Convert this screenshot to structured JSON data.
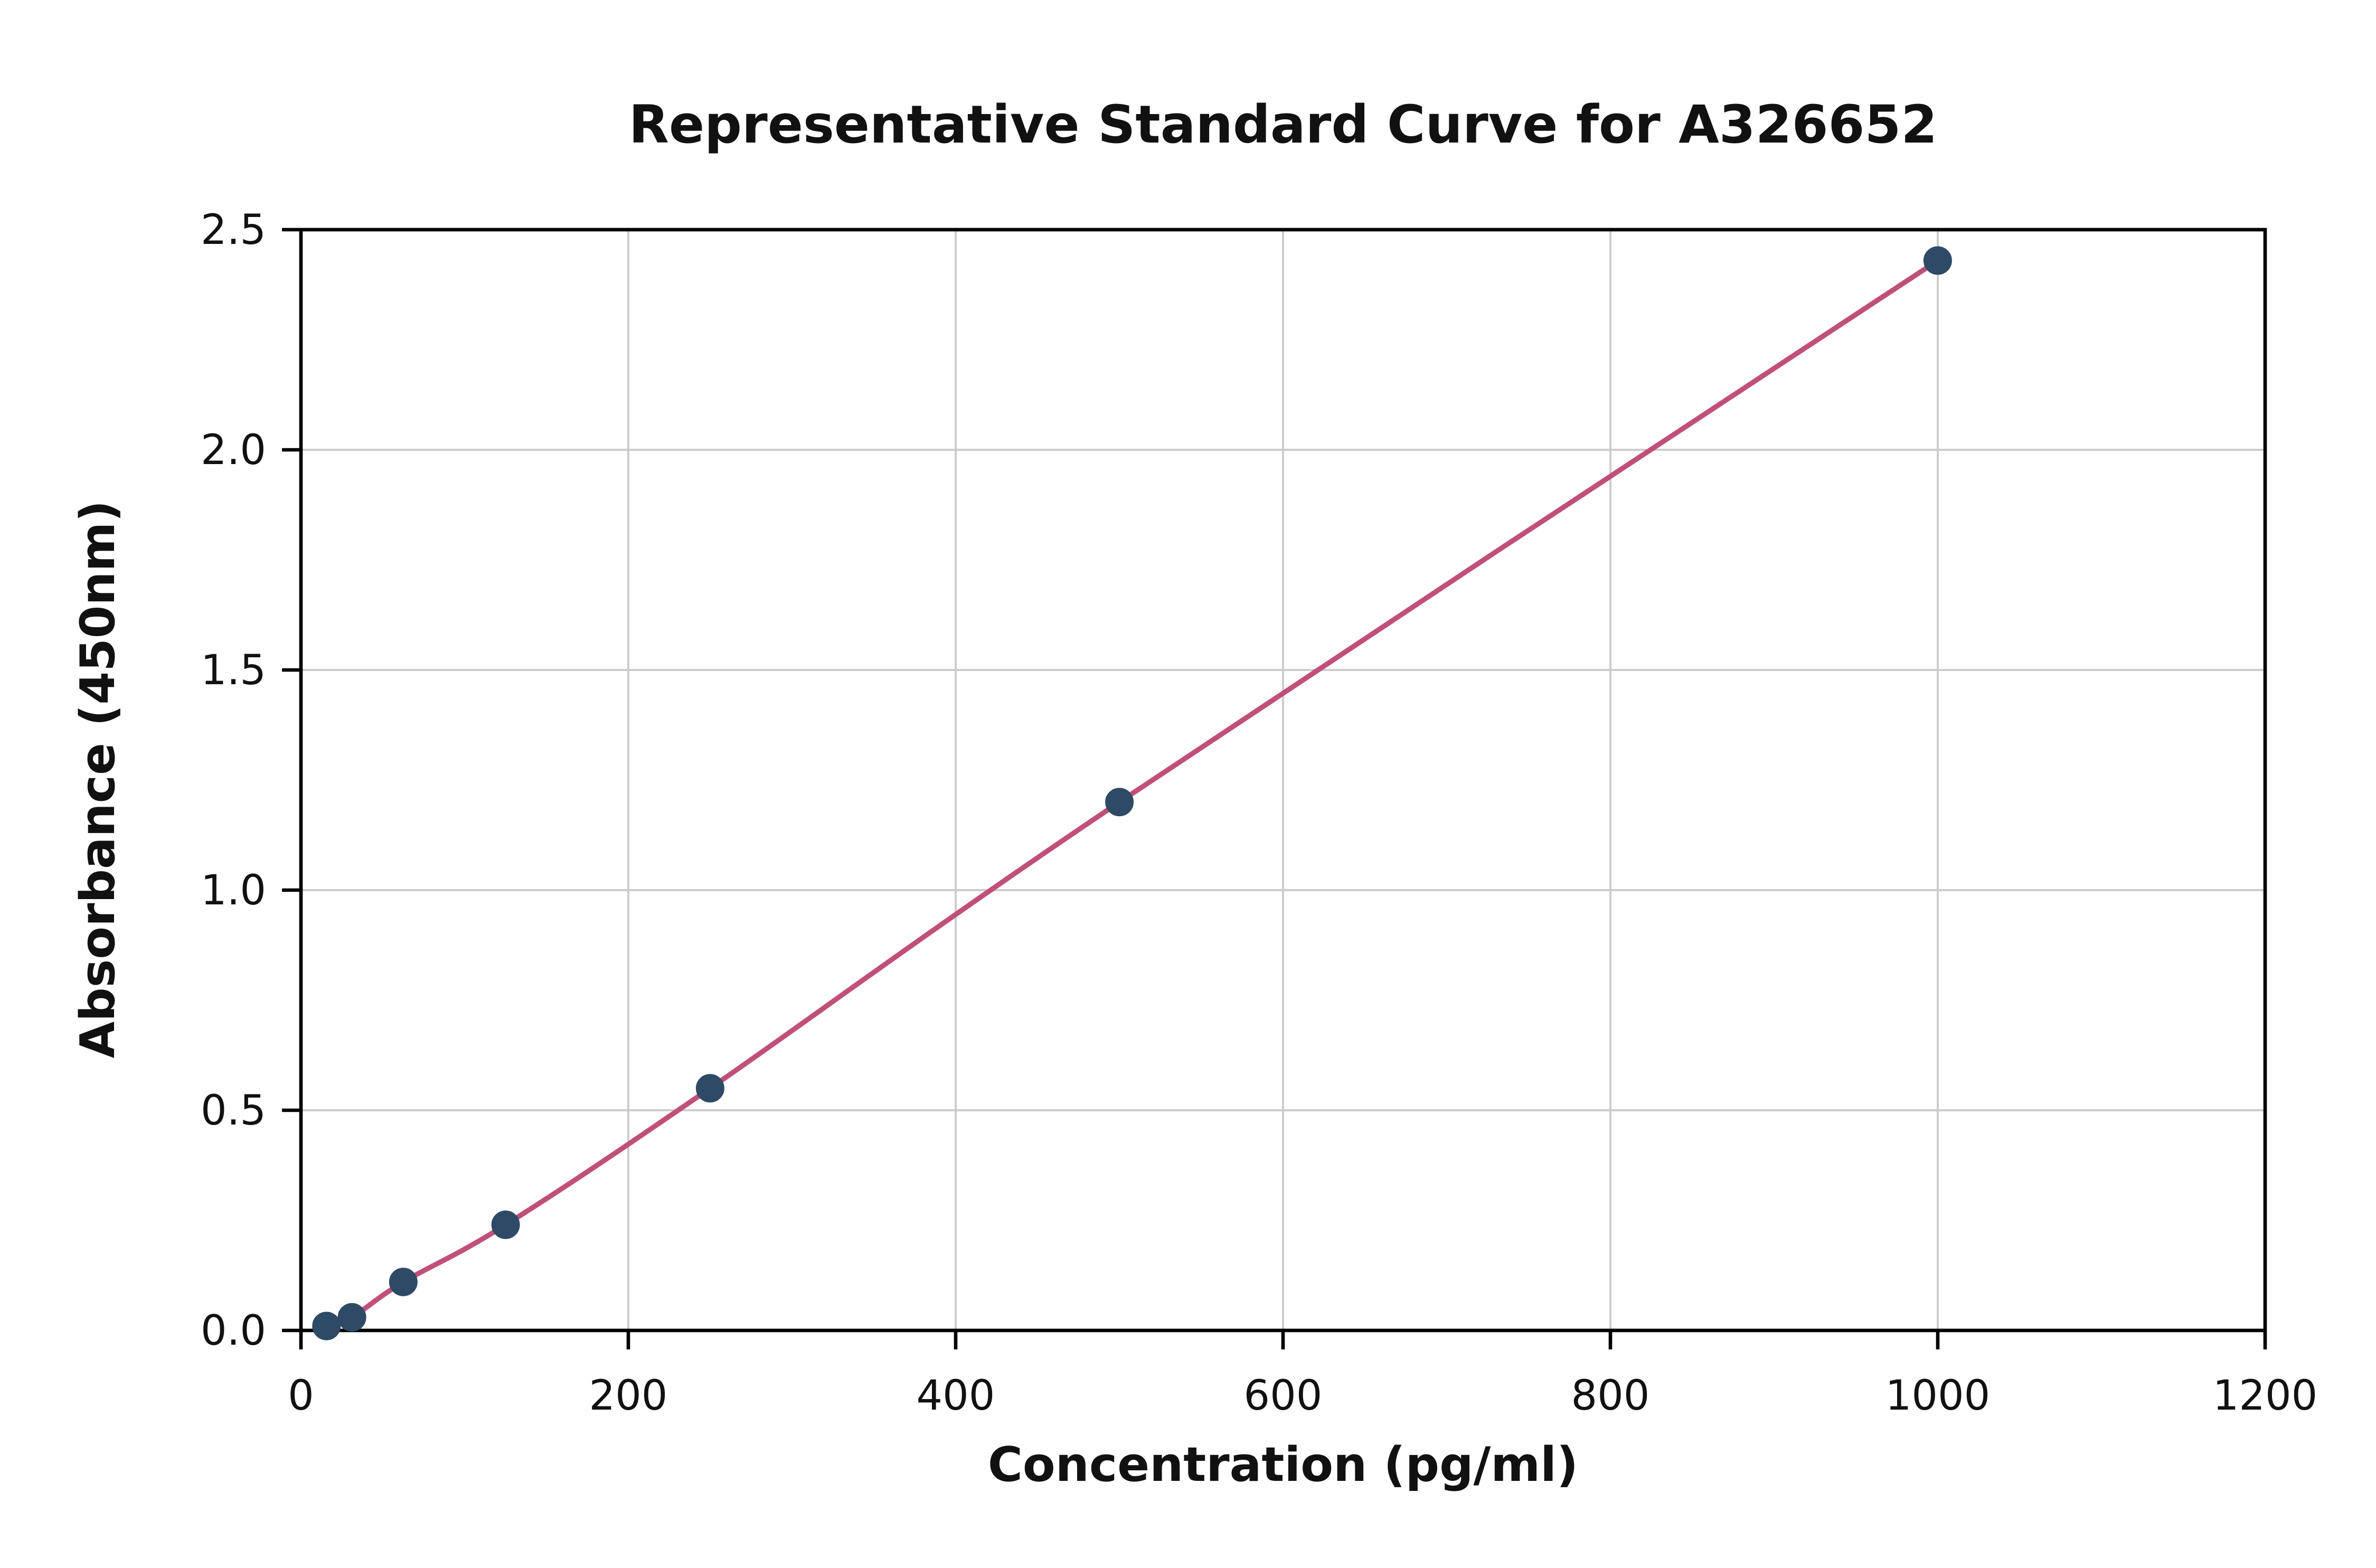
{
  "chart_data": {
    "type": "scatter",
    "title": "Representative Standard Curve for A326652",
    "xlabel": "Concentration (pg/ml)",
    "ylabel": "Absorbance (450nm)",
    "x": [
      15.6,
      31.2,
      62.5,
      125,
      250,
      500,
      1000
    ],
    "y": [
      0.01,
      0.03,
      0.11,
      0.24,
      0.55,
      1.2,
      2.43
    ],
    "xlim": [
      0,
      1200
    ],
    "ylim": [
      0,
      2.5
    ],
    "xticks": [
      0,
      200,
      400,
      600,
      800,
      1000,
      1200
    ],
    "xtick_labels": [
      "0",
      "200",
      "400",
      "600",
      "800",
      "1000",
      "1200"
    ],
    "yticks": [
      0.0,
      0.5,
      1.0,
      1.5,
      2.0,
      2.5
    ],
    "ytick_labels": [
      "0.0",
      "0.5",
      "1.0",
      "1.5",
      "2.0",
      "2.5"
    ],
    "grid": true,
    "legend": "none",
    "line_color": "#c0507a",
    "point_color": "#2e4a66",
    "grid_color": "#cccccc",
    "axis_color": "#000000",
    "background": "#ffffff"
  }
}
